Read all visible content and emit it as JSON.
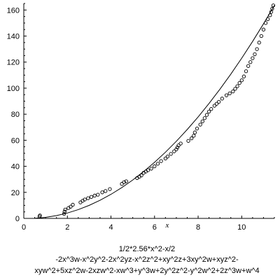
{
  "chart_data": {
    "type": "scatter",
    "title": "",
    "xlabel": "x",
    "ylabel": "",
    "xlim": [
      0,
      11.5
    ],
    "ylim": [
      0,
      165
    ],
    "x_ticks": [
      "0",
      "2",
      "4",
      "6",
      "8",
      "10"
    ],
    "y_ticks": [
      "0",
      "20",
      "40",
      "60",
      "80",
      "100",
      "120",
      "140",
      "160"
    ],
    "grid": false,
    "legend": "none",
    "caption": [
      "1/2*2.56*x^2-x/2",
      "-2x^3w-x^2y^2-2x^2yz-x^2z^2+xy^2z+3xy^2w+xyz^2-",
      "xyw^2+5xz^2w-2xzw^2-xw^3+y^3w+2y^2z^2-y^2w^2+2z^3w+w^4"
    ],
    "curve": {
      "label": "1/2*2.56*x^2-x/2",
      "x": [
        0,
        0.5,
        1,
        1.5,
        2,
        2.5,
        3,
        3.5,
        4,
        4.5,
        5,
        5.5,
        6,
        6.5,
        7,
        7.5,
        8,
        8.5,
        9,
        9.5,
        10,
        10.5,
        11,
        11.5
      ],
      "y": [
        0,
        0.07,
        0.78,
        2.13,
        4.12,
        6.75,
        10.02,
        13.93,
        18.48,
        23.67,
        29.5,
        35.97,
        43.08,
        50.83,
        59.22,
        68.25,
        77.92,
        88.23,
        99.18,
        110.77,
        123.0,
        135.87,
        149.38,
        163.53
      ]
    },
    "series": [
      {
        "points": [
          [
            0.72,
            1.5
          ],
          [
            0.74,
            2.3
          ],
          [
            1.85,
            3.5
          ],
          [
            1.87,
            5.2
          ],
          [
            1.9,
            6.8
          ],
          [
            2.05,
            8.0
          ],
          [
            2.15,
            9.0
          ],
          [
            2.25,
            10.5
          ],
          [
            2.6,
            12.3
          ],
          [
            2.7,
            13.5
          ],
          [
            2.8,
            14.5
          ],
          [
            2.95,
            15.5
          ],
          [
            3.1,
            16.5
          ],
          [
            3.25,
            17.5
          ],
          [
            3.4,
            18.2
          ],
          [
            3.6,
            20.0
          ],
          [
            3.75,
            21.0
          ],
          [
            3.95,
            22.5
          ],
          [
            4.5,
            26.5
          ],
          [
            4.6,
            27.8
          ],
          [
            4.7,
            28.5
          ],
          [
            5.2,
            31.0
          ],
          [
            5.3,
            32.0
          ],
          [
            5.4,
            33.0
          ],
          [
            5.5,
            35.0
          ],
          [
            5.6,
            36.0
          ],
          [
            5.7,
            37.0
          ],
          [
            5.85,
            38.2
          ],
          [
            6.0,
            40.0
          ],
          [
            6.15,
            42.0
          ],
          [
            6.3,
            44.0
          ],
          [
            6.5,
            46.0
          ],
          [
            6.6,
            47.5
          ],
          [
            6.75,
            49.5
          ],
          [
            6.9,
            51.5
          ],
          [
            7.0,
            53.0
          ],
          [
            7.05,
            54.5
          ],
          [
            7.1,
            56.0
          ],
          [
            7.2,
            57.5
          ],
          [
            7.55,
            59.5
          ],
          [
            7.7,
            61.5
          ],
          [
            7.8,
            63.5
          ],
          [
            7.85,
            66.0
          ],
          [
            7.95,
            69.0
          ],
          [
            8.1,
            72.0
          ],
          [
            8.2,
            74.5
          ],
          [
            8.3,
            77.0
          ],
          [
            8.4,
            79.5
          ],
          [
            8.5,
            82.0
          ],
          [
            8.6,
            84.0
          ],
          [
            8.75,
            86.5
          ],
          [
            8.85,
            88.0
          ],
          [
            8.95,
            89.5
          ],
          [
            9.1,
            92.0
          ],
          [
            9.3,
            94.5
          ],
          [
            9.45,
            96.0
          ],
          [
            9.6,
            97.5
          ],
          [
            9.7,
            99.5
          ],
          [
            9.8,
            101.5
          ],
          [
            9.9,
            104.0
          ],
          [
            10.0,
            106.0
          ],
          [
            10.1,
            109.0
          ],
          [
            10.2,
            113.0
          ],
          [
            10.3,
            117.0
          ],
          [
            10.4,
            120.0
          ],
          [
            10.5,
            123.0
          ],
          [
            10.6,
            126.0
          ],
          [
            10.7,
            130.0
          ],
          [
            10.8,
            135.0
          ],
          [
            10.9,
            140.0
          ],
          [
            11.0,
            145.0
          ],
          [
            11.1,
            150.0
          ],
          [
            11.2,
            153.0
          ],
          [
            11.3,
            156.0
          ],
          [
            11.35,
            158.5
          ],
          [
            11.4,
            161.0
          ],
          [
            11.45,
            163.5
          ]
        ]
      }
    ]
  }
}
